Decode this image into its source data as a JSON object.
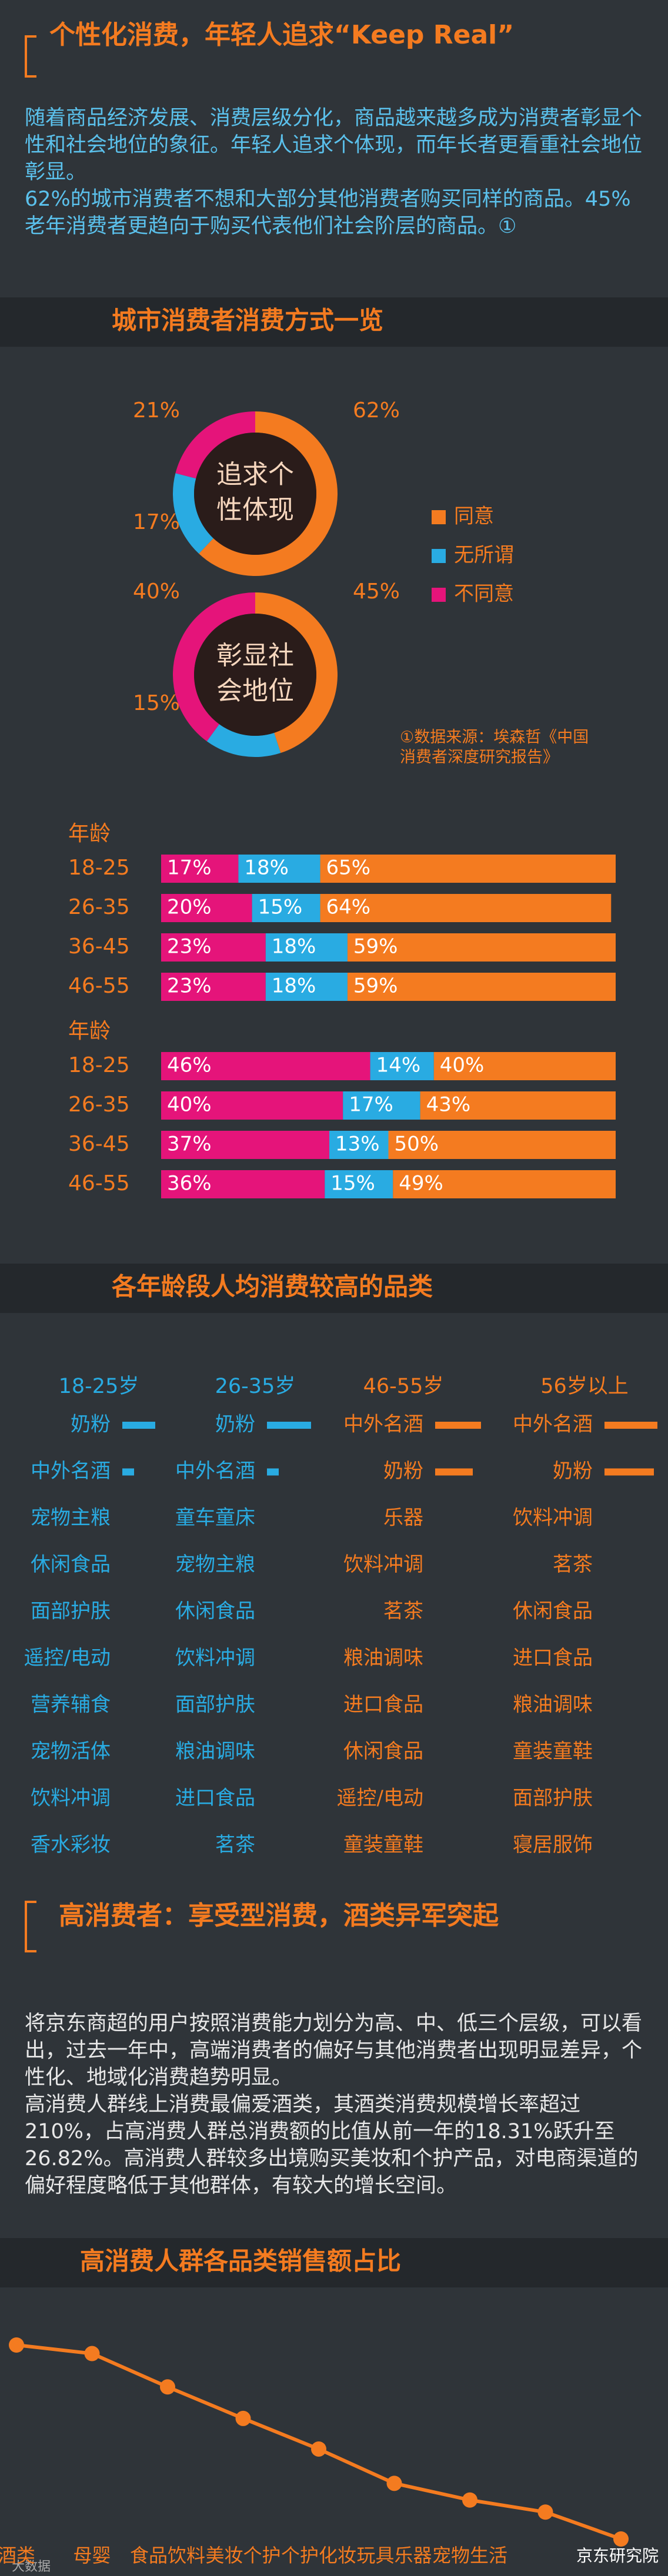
{
  "intro": {
    "title": "个性化消费，年轻人追求“Keep Real”",
    "paragraphs": [
      "随着商品经济发展、消费层级分化，商品越来越多成为消费者彰显个性和社会地位的象征。年轻人追求个体现，而年长者更看重社会地位彰显。",
      "62%的城市消费者不想和大部分其他消费者购买同样的商品。45%老年消费者更趋向于购买代表他们社会阶层的商品。①"
    ]
  },
  "section_title_1": "城市消费者消费方式一览",
  "source_note": "①数据来源：埃森哲《中国消费者深度研究报告》",
  "chart_data": [
    {
      "type": "pie",
      "title_lines": [
        "追求个",
        "性体现"
      ],
      "labels": [
        "同意",
        "无所谓",
        "不同意"
      ],
      "colors": [
        "#f47b20",
        "#29abe2",
        "#e5147a"
      ],
      "values": [
        62,
        17,
        21
      ],
      "value_labels": [
        "62%",
        "17%",
        "21%"
      ]
    },
    {
      "type": "pie",
      "title_lines": [
        "彰显社",
        "会地位"
      ],
      "colors": [
        "#f47b20",
        "#29abe2",
        "#e5147a"
      ],
      "values": [
        45,
        15,
        40
      ],
      "value_labels": [
        "45%",
        "15%",
        "40%"
      ]
    },
    {
      "type": "bar",
      "orientation": "horizontal",
      "stacked": true,
      "axis_title": "年龄",
      "categories": [
        "18-25",
        "26-35",
        "36-45",
        "46-55"
      ],
      "series": [
        {
          "color": "#e5147a",
          "values": [
            17,
            20,
            23,
            23
          ],
          "value_labels": [
            "17%",
            "20%",
            "23%",
            "23%"
          ]
        },
        {
          "color": "#29abe2",
          "values": [
            18,
            15,
            18,
            18
          ],
          "value_labels": [
            "18%",
            "15%",
            "18%",
            "18%"
          ]
        },
        {
          "color": "#f47b20",
          "values": [
            65,
            64,
            59,
            59
          ],
          "value_labels": [
            "65%",
            "64%",
            "59%",
            "59%"
          ]
        }
      ]
    },
    {
      "type": "bar",
      "orientation": "horizontal",
      "stacked": true,
      "axis_title": "年龄",
      "categories": [
        "18-25",
        "26-35",
        "36-45",
        "46-55"
      ],
      "series": [
        {
          "color": "#e5147a",
          "values": [
            46,
            40,
            37,
            36
          ],
          "value_labels": [
            "46%",
            "40%",
            "37%",
            "36%"
          ]
        },
        {
          "color": "#29abe2",
          "values": [
            14,
            17,
            13,
            15
          ],
          "value_labels": [
            "14%",
            "17%",
            "13%",
            "15%"
          ]
        },
        {
          "color": "#f47b20",
          "values": [
            40,
            43,
            50,
            49
          ],
          "value_labels": [
            "40%",
            "43%",
            "50%",
            "49%"
          ]
        }
      ]
    },
    {
      "type": "line",
      "title": "高消费人群各品类销售额占比",
      "color": "#f47b20",
      "categories": [
        "酒类",
        "母婴",
        "食品饮料",
        "美妆个护",
        "个护化妆",
        "玩具乐器",
        "宠物生活",
        null,
        null
      ],
      "values": [
        26.82,
        25.9,
        22.3,
        18.9,
        15.6,
        11.9,
        10.1,
        8.8,
        5.9
      ]
    }
  ],
  "categories_by_age": {
    "title": "各年龄段人均消费较高的品类",
    "columns": [
      {
        "header": "18-25岁",
        "color": "#29abe2",
        "items": [
          "奶粉",
          "中外名酒",
          "宠物主粮",
          "休闲食品",
          "面部护肤",
          "遥控/电动",
          "营养辅食",
          "宠物活体",
          "饮料冲调",
          "香水彩妆"
        ]
      },
      {
        "header": "26-35岁",
        "color": "#29abe2",
        "items": [
          "奶粉",
          "中外名酒",
          "童车童床",
          "宠物主粮",
          "休闲食品",
          "饮料冲调",
          "面部护肤",
          "粮油调味",
          "进口食品",
          "茗茶"
        ]
      },
      {
        "header": "46-55岁",
        "color": "#f47b20",
        "items": [
          "中外名酒",
          "奶粉",
          "乐器",
          "饮料冲调",
          "茗茶",
          "粮油调味",
          "进口食品",
          "休闲食品",
          "遥控/电动",
          "童装童鞋"
        ]
      },
      {
        "header": "56岁以上",
        "color": "#f47b20",
        "items": [
          "中外名酒",
          "奶粉",
          "饮料冲调",
          "茗茶",
          "休闲食品",
          "进口食品",
          "粮油调味",
          "童装童鞋",
          "面部护肤",
          "寝居服饰"
        ]
      }
    ]
  },
  "high_spenders": {
    "title": "高消费者：享受型消费，酒类异军突起",
    "paragraphs": [
      "将京东商超的用户按照消费能力划分为高、中、低三个层级，可以看出，过去一年中，高端消费者的偏好与其他消费者出现明显差异，个性化、地域化消费趋势明显。",
      "高消费人群线上消费最偏爱酒类，其酒类消费规模增长率超过210%，占高消费人群总消费额的比值从前一年的18.31%跃升至26.82%。高消费人群较多出境购买美妆和个护产品，对电商渠道的偏好程度略低于其他群体，有较大的增长空间。"
    ]
  },
  "footer": {
    "watermark": "京东研究院",
    "logo": "大数据"
  }
}
